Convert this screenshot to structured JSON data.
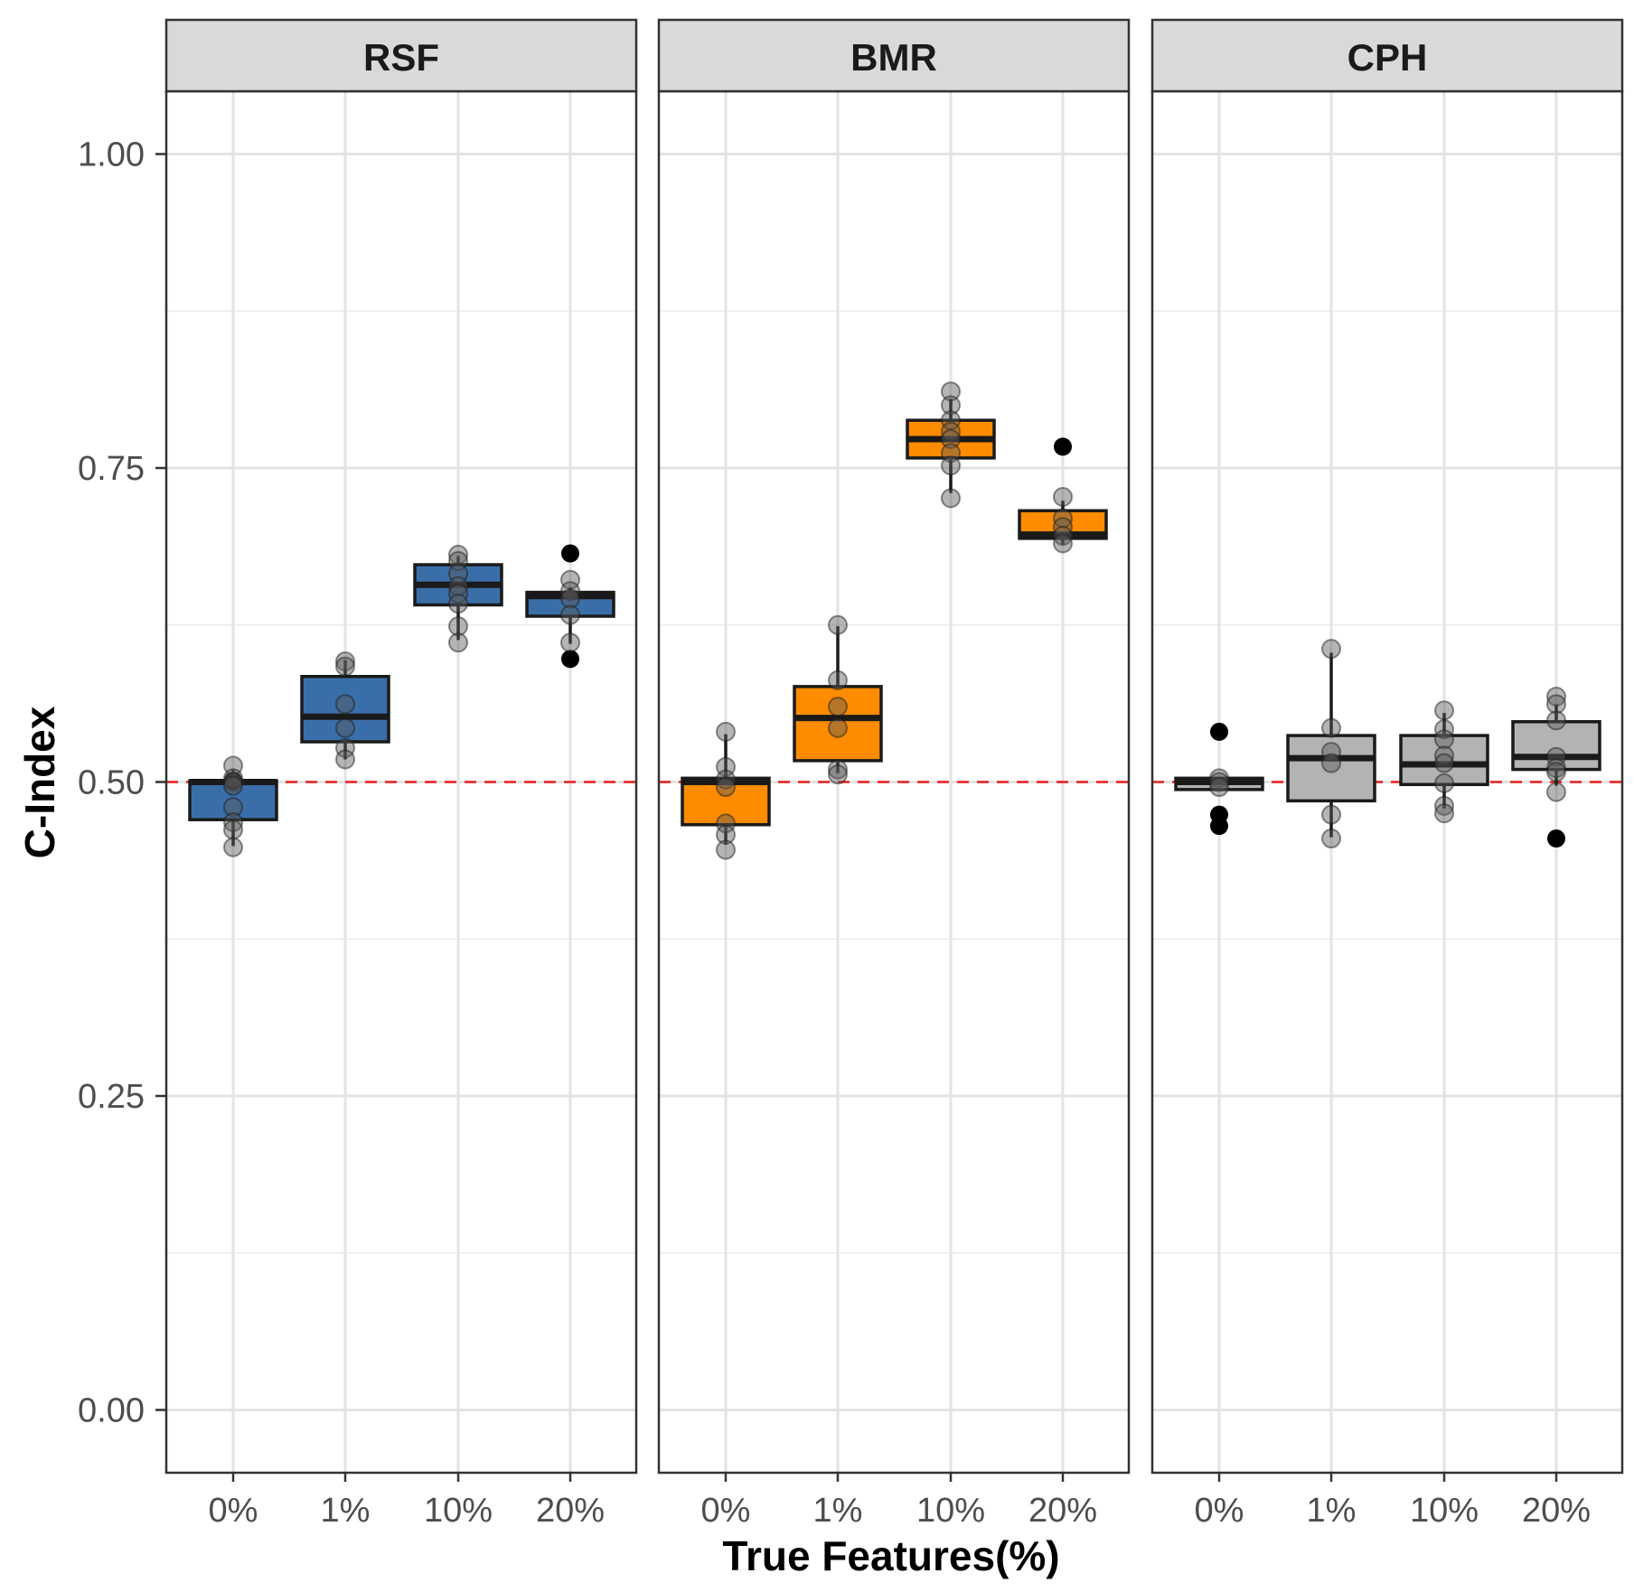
{
  "chart_data": {
    "type": "box",
    "xlabel": "True Features(%)",
    "ylabel": "C-Index",
    "ylim": [
      -0.05,
      1.05
    ],
    "y_ticks": [
      {
        "value": 0.0,
        "label": "0.00"
      },
      {
        "value": 0.25,
        "label": "0.25"
      },
      {
        "value": 0.5,
        "label": "0.50"
      },
      {
        "value": 0.75,
        "label": "0.75"
      },
      {
        "value": 1.0,
        "label": "1.00"
      }
    ],
    "y_minor": [
      0.125,
      0.375,
      0.625,
      0.875
    ],
    "reference_line": {
      "y": 0.5,
      "color": "#e8221f",
      "style": "dashed"
    },
    "categories": [
      "0%",
      "1%",
      "10%",
      "20%"
    ],
    "grid": true,
    "panels": [
      {
        "name": "RSF",
        "color": "#3a6ea8",
        "boxes": [
          {
            "category": "0%",
            "q1": 0.47,
            "median": 0.5,
            "q3": 0.501,
            "whisker_low": 0.449,
            "whisker_high": 0.51,
            "points": [
              0.513,
              0.503,
              0.5,
              0.497,
              0.48,
              0.468,
              0.462,
              0.448
            ],
            "outliers": [
              0.501
            ]
          },
          {
            "category": "1%",
            "q1": 0.532,
            "median": 0.552,
            "q3": 0.584,
            "whisker_low": 0.518,
            "whisker_high": 0.597,
            "points": [
              0.596,
              0.592,
              0.562,
              0.543,
              0.527,
              0.518
            ],
            "outliers": []
          },
          {
            "category": "10%",
            "q1": 0.641,
            "median": 0.657,
            "q3": 0.673,
            "whisker_low": 0.613,
            "whisker_high": 0.68,
            "points": [
              0.681,
              0.676,
              0.666,
              0.656,
              0.65,
              0.642,
              0.624,
              0.611
            ],
            "outliers": []
          },
          {
            "category": "20%",
            "q1": 0.632,
            "median": 0.648,
            "q3": 0.651,
            "whisker_low": 0.61,
            "whisker_high": 0.655,
            "points": [
              0.661,
              0.652,
              0.646,
              0.633,
              0.611
            ],
            "outliers": [
              0.682,
              0.598
            ]
          }
        ]
      },
      {
        "name": "BMR",
        "color": "#ff8c00",
        "boxes": [
          {
            "category": "0%",
            "q1": 0.466,
            "median": 0.5,
            "q3": 0.503,
            "whisker_low": 0.45,
            "whisker_high": 0.538,
            "points": [
              0.54,
              0.512,
              0.502,
              0.496,
              0.467,
              0.458,
              0.446
            ],
            "outliers": []
          },
          {
            "category": "1%",
            "q1": 0.517,
            "median": 0.551,
            "q3": 0.576,
            "whisker_low": 0.507,
            "whisker_high": 0.624,
            "points": [
              0.625,
              0.581,
              0.56,
              0.543,
              0.51,
              0.506
            ],
            "outliers": []
          },
          {
            "category": "10%",
            "q1": 0.758,
            "median": 0.773,
            "q3": 0.788,
            "whisker_low": 0.73,
            "whisker_high": 0.805,
            "points": [
              0.811,
              0.8,
              0.788,
              0.779,
              0.773,
              0.762,
              0.752,
              0.726
            ],
            "outliers": []
          },
          {
            "category": "20%",
            "q1": 0.694,
            "median": 0.697,
            "q3": 0.716,
            "whisker_low": 0.689,
            "whisker_high": 0.724,
            "points": [
              0.727,
              0.71,
              0.703,
              0.696,
              0.69
            ],
            "outliers": [
              0.767
            ]
          }
        ]
      },
      {
        "name": "CPH",
        "color": "#b3b3b3",
        "boxes": [
          {
            "category": "0%",
            "q1": 0.494,
            "median": 0.5,
            "q3": 0.503,
            "whisker_low": 0.494,
            "whisker_high": 0.503,
            "points": [
              0.503,
              0.5,
              0.496
            ],
            "outliers": [
              0.54,
              0.474,
              0.465
            ]
          },
          {
            "category": "1%",
            "q1": 0.485,
            "median": 0.519,
            "q3": 0.537,
            "whisker_low": 0.456,
            "whisker_high": 0.603,
            "points": [
              0.606,
              0.543,
              0.524,
              0.515,
              0.474,
              0.455
            ],
            "outliers": []
          },
          {
            "category": "10%",
            "q1": 0.498,
            "median": 0.514,
            "q3": 0.537,
            "whisker_low": 0.479,
            "whisker_high": 0.555,
            "points": [
              0.557,
              0.542,
              0.534,
              0.521,
              0.515,
              0.499,
              0.481,
              0.475
            ],
            "outliers": []
          },
          {
            "category": "20%",
            "q1": 0.51,
            "median": 0.52,
            "q3": 0.548,
            "whisker_low": 0.497,
            "whisker_high": 0.562,
            "points": [
              0.568,
              0.562,
              0.549,
              0.52,
              0.511,
              0.508,
              0.492
            ],
            "outliers": [
              0.455
            ]
          }
        ]
      }
    ]
  }
}
